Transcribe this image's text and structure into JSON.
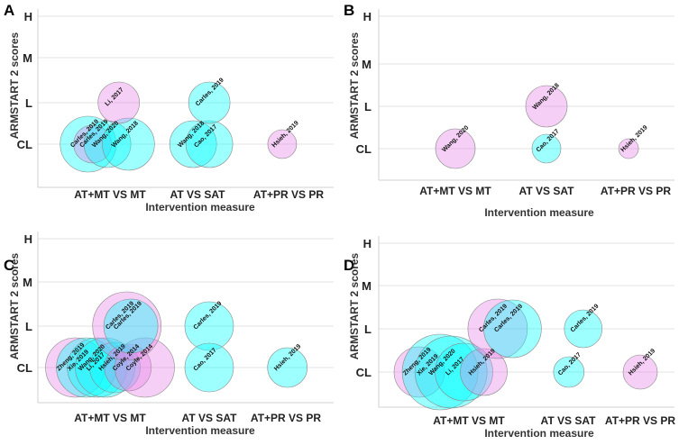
{
  "colors": {
    "cyan": "#00ffff",
    "pink": "#e680e6",
    "stroke": "#8a8a8a"
  },
  "chart_data": [
    {
      "type": "scatter",
      "panel": "A",
      "ylabel": "ARMSTART 2 scores",
      "xlabel": "Intervention measure",
      "yticks": [
        "CL",
        "L",
        "M",
        "H"
      ],
      "categories": [
        "AT+MT VS MT",
        "AT VS SAT",
        "AT+PR VS PR"
      ],
      "bubbles": [
        {
          "label": "Carles, 2019",
          "x": 0.75,
          "y": 0,
          "size": 31,
          "color": "cyan"
        },
        {
          "label": "Carles, 2019",
          "x": 0.8,
          "y": 0,
          "size": 21,
          "color": "pink"
        },
        {
          "label": "Wang, 2020",
          "x": 0.97,
          "y": 0,
          "size": 26,
          "color": "cyan"
        },
        {
          "label": "Wang, 2018",
          "x": 1.21,
          "y": 0,
          "size": 29,
          "color": "cyan"
        },
        {
          "label": "Li, 2017",
          "x": 1.1,
          "y": 1,
          "size": 23,
          "color": "pink"
        },
        {
          "label": "Wang, 2018",
          "x": 1.95,
          "y": 0,
          "size": 26,
          "color": "cyan"
        },
        {
          "label": "Cao, 2017",
          "x": 2.13,
          "y": 0,
          "size": 26,
          "color": "cyan"
        },
        {
          "label": "Carles, 2019",
          "x": 2.13,
          "y": 1,
          "size": 23,
          "color": "cyan"
        },
        {
          "label": "Hsieh, 2019",
          "x": 2.93,
          "y": 0,
          "size": 16,
          "color": "pink"
        }
      ]
    },
    {
      "type": "scatter",
      "panel": "B",
      "ylabel": "ARMSTART 2 scores",
      "xlabel": "Intervention measure",
      "yticks": [
        "CL",
        "L",
        "M",
        "H"
      ],
      "categories": [
        "AT+MT VS MT",
        "AT VS SAT",
        "AT+PR VS PR"
      ],
      "bubbles": [
        {
          "label": "Wang, 2020",
          "x": 1.0,
          "y": 0,
          "size": 22,
          "color": "pink"
        },
        {
          "label": "Wang, 2018",
          "x": 2.0,
          "y": 1,
          "size": 23,
          "color": "pink"
        },
        {
          "label": "Cao, 2017",
          "x": 2.0,
          "y": 0,
          "size": 16,
          "color": "cyan"
        },
        {
          "label": "Hsieh, 2019",
          "x": 2.92,
          "y": 0,
          "size": 11,
          "color": "pink"
        }
      ]
    },
    {
      "type": "scatter",
      "panel": "C",
      "ylabel": "ARMSTART 2 scores",
      "xlabel": "Intervention measure",
      "yticks": [
        "CL",
        "L",
        "M",
        "H"
      ],
      "categories": [
        "AT+MT VS MT",
        "AT VS SAT",
        "AT+PR VS PR"
      ],
      "bubbles": [
        {
          "label": "Zheng, 2019",
          "x": 0.65,
          "y": 0,
          "size": 33,
          "color": "pink"
        },
        {
          "label": "Xie, 2019",
          "x": 0.76,
          "y": 0,
          "size": 33,
          "color": "cyan"
        },
        {
          "label": "Wang, 2020",
          "x": 0.87,
          "y": 0,
          "size": 33,
          "color": "cyan"
        },
        {
          "label": "Li, 2017",
          "x": 0.95,
          "y": 0,
          "size": 33,
          "color": "cyan"
        },
        {
          "label": "Hsieh, 2019",
          "x": 1.05,
          "y": 0,
          "size": 28,
          "color": "cyan"
        },
        {
          "label": "Coyle, 2014",
          "x": 1.18,
          "y": 0,
          "size": 26,
          "color": "pink"
        },
        {
          "label": "Coyle, 2014",
          "x": 1.35,
          "y": 0,
          "size": 33,
          "color": "pink"
        },
        {
          "label": "Carles, 2019",
          "x": 1.17,
          "y": 1,
          "size": 38,
          "color": "pink"
        },
        {
          "label": "Carles, 2019",
          "x": 1.21,
          "y": 1,
          "size": 30,
          "color": "cyan"
        },
        {
          "label": "Carles, 2019",
          "x": 2.0,
          "y": 1,
          "size": 27,
          "color": "cyan"
        },
        {
          "label": "Cao, 2017",
          "x": 2.0,
          "y": 0,
          "size": 27,
          "color": "cyan"
        },
        {
          "label": "Hsieh, 2019",
          "x": 3.02,
          "y": 0,
          "size": 22,
          "color": "cyan"
        }
      ]
    },
    {
      "type": "scatter",
      "panel": "D",
      "ylabel": "ARMSTART 2 scores",
      "xlabel": "Intervention measure",
      "yticks": [
        "CL",
        "L",
        "M",
        "H"
      ],
      "categories": [
        "AT+MT VS MT",
        "AT VS SAT",
        "AT+PR VS PR"
      ],
      "bubbles": [
        {
          "label": "Zheng, 2019",
          "x": 0.5,
          "y": 0,
          "size": 28,
          "color": "pink"
        },
        {
          "label": "Xie, 2019",
          "x": 0.71,
          "y": 0,
          "size": 42,
          "color": "cyan"
        },
        {
          "label": "Wang, 2020",
          "x": 0.82,
          "y": 0,
          "size": 40,
          "color": "cyan"
        },
        {
          "label": "Li, 2017",
          "x": 0.95,
          "y": 0,
          "size": 32,
          "color": "cyan"
        },
        {
          "label": "Hsieh, 2019",
          "x": 1.15,
          "y": 0,
          "size": 26,
          "color": "pink"
        },
        {
          "label": "Carles, 2019",
          "x": 1.29,
          "y": 1,
          "size": 33,
          "color": "pink"
        },
        {
          "label": "Carles, 2019",
          "x": 1.44,
          "y": 1,
          "size": 32,
          "color": "cyan"
        },
        {
          "label": "Carles, 2019",
          "x": 2.21,
          "y": 1,
          "size": 21,
          "color": "cyan"
        },
        {
          "label": "Cao, 2017",
          "x": 2.01,
          "y": 0,
          "size": 17,
          "color": "cyan"
        },
        {
          "label": "Hsieh, 2019",
          "x": 3.0,
          "y": 0,
          "size": 19,
          "color": "pink"
        }
      ]
    }
  ]
}
